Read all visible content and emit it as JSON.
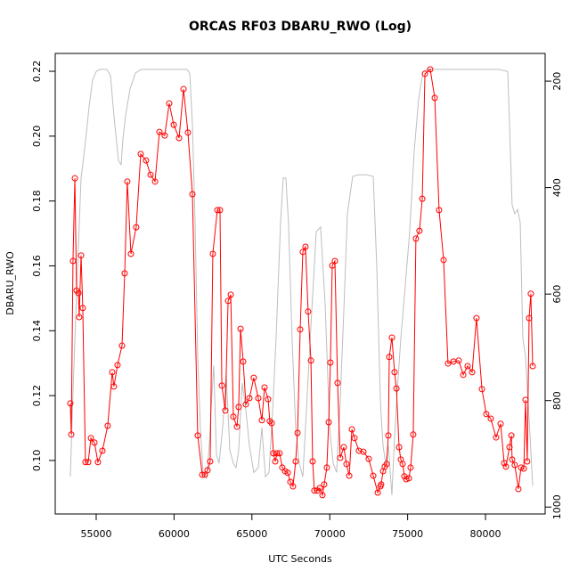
{
  "chart_data": {
    "type": "line",
    "title": "ORCAS RF03 DBARU_RWO (Log)",
    "xlabel": "UTC Seconds",
    "ylabel": "DBARU_RWO",
    "xlim": [
      52370,
      83830
    ],
    "ylim": [
      0.0835,
      0.2255
    ],
    "y2lim": [
      1013,
      148
    ],
    "xticks": [
      55000,
      60000,
      65000,
      70000,
      75000,
      80000
    ],
    "yticks": [
      {
        "value": 0.1,
        "label": "0.10"
      },
      0.12,
      0.14,
      0.16,
      0.18,
      {
        "value": 0.2,
        "label": "0.20"
      },
      0.22
    ],
    "y2ticks": [
      200,
      400,
      600,
      800,
      1000
    ],
    "series": [
      {
        "color": "#bebebe",
        "axis": "y2",
        "markers": false,
        "x": [
          53340,
          53510,
          53740,
          54030,
          54310,
          54540,
          54770,
          55000,
          55230,
          55690,
          55920,
          56140,
          56430,
          56600,
          56720,
          56890,
          57170,
          57520,
          57860,
          58550,
          60830,
          61010,
          61180,
          61350,
          61520,
          61690,
          61860,
          62090,
          62260,
          62440,
          62550,
          62720,
          62890,
          63120,
          63350,
          63580,
          63810,
          63980,
          64150,
          64380,
          64610,
          64840,
          65120,
          65410,
          65640,
          65870,
          66100,
          66330,
          66550,
          66840,
          67010,
          67180,
          67350,
          67580,
          67810,
          68040,
          68270,
          68560,
          68840,
          69130,
          69410,
          69700,
          69990,
          70220,
          70440,
          70670,
          70900,
          71130,
          71470,
          71820,
          72390,
          72790,
          73020,
          73250,
          73420,
          73590,
          73760,
          73990,
          74160,
          74330,
          74560,
          74850,
          75130,
          75420,
          75710,
          75990,
          76280,
          80850,
          81430,
          81710,
          81880,
          82060,
          82230,
          82400,
          82570,
          82800,
          83030
        ],
        "values": [
          943,
          784,
          600,
          382,
          315,
          249,
          198,
          182,
          178,
          178,
          190,
          265,
          349,
          357,
          307,
          265,
          215,
          185,
          178,
          178,
          178,
          185,
          282,
          466,
          717,
          851,
          935,
          945,
          885,
          784,
          734,
          901,
          918,
          851,
          751,
          893,
          918,
          926,
          893,
          767,
          818,
          885,
          935,
          926,
          851,
          943,
          935,
          818,
          684,
          466,
          382,
          382,
          466,
          684,
          851,
          918,
          943,
          784,
          633,
          483,
          474,
          617,
          851,
          918,
          935,
          801,
          633,
          449,
          379,
          376,
          376,
          379,
          550,
          801,
          885,
          918,
          885,
          977,
          868,
          784,
          684,
          583,
          483,
          332,
          232,
          182,
          178,
          178,
          182,
          433,
          449,
          441,
          466,
          684,
          717,
          834,
          960
        ]
      },
      {
        "color": "#ff0000",
        "markers": true,
        "x": [
          53340,
          53400,
          53510,
          53630,
          53740,
          53860,
          53910,
          54030,
          54140,
          54310,
          54490,
          54660,
          54890,
          55110,
          55400,
          55740,
          56030,
          56140,
          56370,
          56660,
          56830,
          57000,
          57230,
          57570,
          57860,
          58200,
          58490,
          58780,
          59060,
          59400,
          59690,
          59980,
          60320,
          60610,
          60890,
          61180,
          61520,
          61810,
          61980,
          62150,
          62320,
          62490,
          62780,
          62950,
          63070,
          63290,
          63470,
          63640,
          63810,
          64040,
          64150,
          64270,
          64440,
          64610,
          64840,
          65120,
          65410,
          65640,
          65810,
          66040,
          66150,
          66270,
          66380,
          66500,
          66610,
          66780,
          66950,
          67130,
          67300,
          67470,
          67640,
          67810,
          67930,
          68100,
          68270,
          68440,
          68610,
          68790,
          68900,
          69010,
          69190,
          69360,
          69530,
          69640,
          69810,
          69930,
          70040,
          70160,
          70330,
          70500,
          70670,
          70900,
          71070,
          71250,
          71420,
          71590,
          71870,
          72160,
          72500,
          72790,
          73080,
          73250,
          73300,
          73420,
          73530,
          73650,
          73760,
          73820,
          73990,
          74160,
          74280,
          74450,
          74560,
          74680,
          74790,
          74910,
          75080,
          75190,
          75360,
          75530,
          75760,
          75940,
          76110,
          76450,
          76740,
          77020,
          77310,
          77590,
          77940,
          78280,
          78570,
          78850,
          79140,
          79420,
          79770,
          80050,
          80340,
          80680,
          80970,
          81200,
          81310,
          81540,
          81660,
          81710,
          81880,
          82110,
          82280,
          82460,
          82570,
          82680,
          82800,
          82910,
          83030
        ],
        "values": [
          0.1176,
          0.108,
          0.1615,
          0.187,
          0.1524,
          0.1516,
          0.1442,
          0.1632,
          0.147,
          0.0995,
          0.0995,
          0.1069,
          0.1055,
          0.0995,
          0.103,
          0.1107,
          0.1272,
          0.1228,
          0.1294,
          0.1354,
          0.1577,
          0.186,
          0.1637,
          0.1719,
          0.1945,
          0.1925,
          0.1881,
          0.186,
          0.2013,
          0.2002,
          0.2101,
          0.2035,
          0.1994,
          0.2145,
          0.2011,
          0.1821,
          0.1077,
          0.0956,
          0.0956,
          0.097,
          0.0997,
          0.1637,
          0.1772,
          0.1772,
          0.1231,
          0.1154,
          0.1492,
          0.1511,
          0.1135,
          0.1104,
          0.1165,
          0.1406,
          0.1305,
          0.1173,
          0.1192,
          0.1255,
          0.1192,
          0.1124,
          0.1225,
          0.1189,
          0.1121,
          0.1115,
          0.1022,
          0.0997,
          0.1022,
          0.1022,
          0.0978,
          0.0967,
          0.0962,
          0.0934,
          0.092,
          0.0997,
          0.1085,
          0.1404,
          0.1643,
          0.1659,
          0.1459,
          0.1308,
          0.0997,
          0.0907,
          0.0907,
          0.0915,
          0.0893,
          0.0926,
          0.0978,
          0.1118,
          0.1302,
          0.1601,
          0.1615,
          0.1239,
          0.1008,
          0.1041,
          0.0989,
          0.0953,
          0.1096,
          0.1069,
          0.103,
          0.1027,
          0.1005,
          0.0953,
          0.0901,
          0.092,
          0.0926,
          0.0967,
          0.0981,
          0.0989,
          0.1077,
          0.1319,
          0.1379,
          0.1272,
          0.1222,
          0.1041,
          0.1003,
          0.0989,
          0.0951,
          0.0942,
          0.0945,
          0.0978,
          0.108,
          0.1684,
          0.1708,
          0.1807,
          0.2192,
          0.2206,
          0.2118,
          0.1772,
          0.1618,
          0.1299,
          0.1305,
          0.1308,
          0.1264,
          0.1291,
          0.1272,
          0.1439,
          0.122,
          0.1143,
          0.1129,
          0.1071,
          0.1113,
          0.0992,
          0.0981,
          0.1041,
          0.1077,
          0.1003,
          0.0986,
          0.0912,
          0.0978,
          0.0975,
          0.1187,
          0.0997,
          0.1439,
          0.1514,
          0.1291
        ]
      }
    ]
  }
}
